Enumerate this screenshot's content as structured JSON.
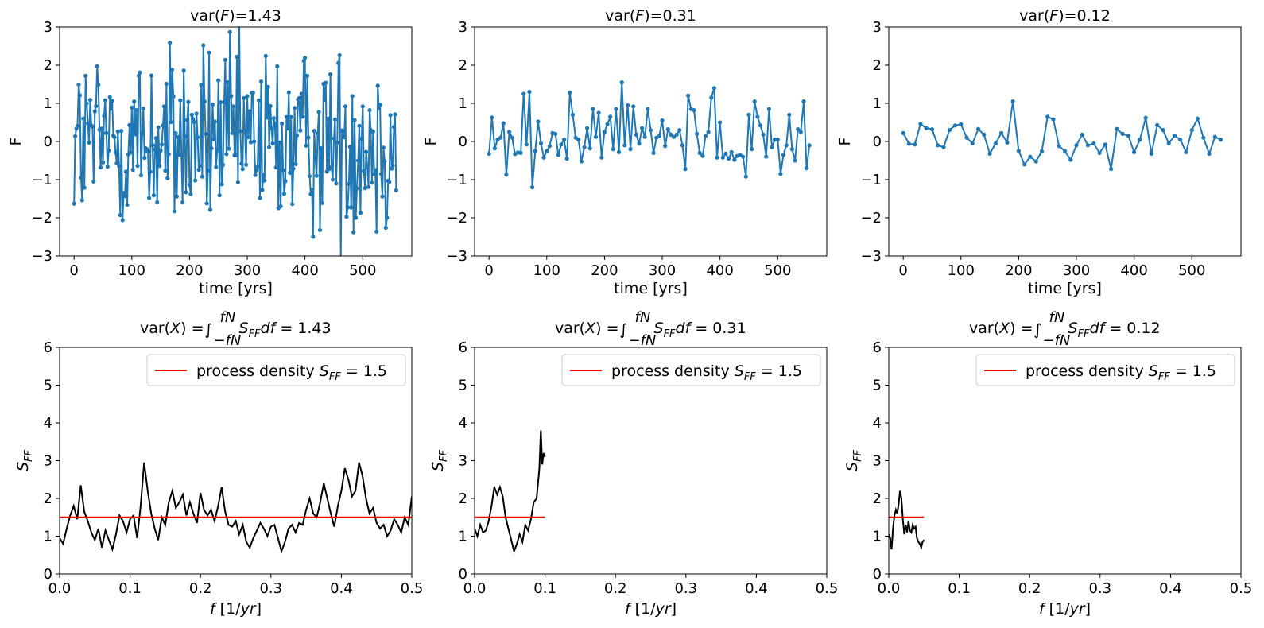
{
  "colors": {
    "series": "#1f77b4",
    "spectrum": "#000000",
    "reference": "#ff0000"
  },
  "top_titles": [
    "var(F)=1.43",
    "var(F)=0.31",
    "var(F)=0.12"
  ],
  "bottom_title_values": [
    "1.43",
    "0.31",
    "0.12"
  ],
  "legend_label": "process density S_FF = 1.5",
  "chart_data": [
    {
      "type": "line",
      "panel": "top-1",
      "title": "var(F)=1.43",
      "xlabel": "time [yrs]",
      "ylabel": "F",
      "xlim": [
        -25,
        585
      ],
      "ylim": [
        -3,
        3
      ],
      "xticks": [
        0,
        100,
        200,
        300,
        400,
        500
      ],
      "yticks": [
        -3,
        -2,
        -1,
        0,
        1,
        2,
        3
      ],
      "sample_interval": 2,
      "n_points": 280,
      "noise_scale": 1.2
    },
    {
      "type": "line",
      "panel": "top-2",
      "title": "var(F)=0.31",
      "xlabel": "time [yrs]",
      "ylabel": "F",
      "xlim": [
        -25,
        585
      ],
      "ylim": [
        -3,
        3
      ],
      "xticks": [
        0,
        100,
        200,
        300,
        400,
        500
      ],
      "yticks": [
        -3,
        -2,
        -1,
        0,
        1,
        2,
        3
      ],
      "sample_interval": 5,
      "n_points": 112,
      "values": [
        -0.32,
        0.63,
        -0.18,
        0.05,
        0.1,
        0.48,
        -0.87,
        0.25,
        0.1,
        -0.33,
        -0.29,
        -0.3,
        1.25,
        -0.08,
        1.3,
        -1.2,
        -0.25,
        0.52,
        -0.05,
        -0.42,
        -0.25,
        -0.12,
        0.22,
        0.2,
        -0.35,
        -0.08,
        0.05,
        -0.45,
        1.28,
        0.7,
        0.1,
        0.05,
        -0.52,
        -0.15,
        0.35,
        -0.18,
        0.85,
        0.12,
        0.75,
        -0.42,
        0.25,
        0.45,
        0.65,
        -0.2,
        0.85,
        -0.28,
        1.55,
        -0.1,
        0.95,
        -0.2,
        0.92,
        0.18,
        -0.05,
        0.35,
        0.12,
        0.85,
        0.3,
        -0.3,
        0.1,
        0.15,
        0.55,
        -0.12,
        0.32,
        0.18,
        0.12,
        0.18,
        0.3,
        -0.1,
        -0.72,
        1.2,
        0.85,
        0.82,
        0.2,
        -0.3,
        -0.38,
        0.15,
        0.25,
        1.15,
        1.4,
        -0.42,
        0.5,
        -0.42,
        -0.32,
        -0.45,
        -0.28,
        -0.48,
        -0.38,
        -0.35,
        -0.4,
        -0.92,
        0.7,
        -0.2,
        1.05,
        0.65,
        0.42,
        0.18,
        -0.4,
        0.85,
        -0.15,
        0.05,
        0.05,
        -0.85,
        -0.35,
        -0.1,
        0.7,
        -0.2,
        -0.5,
        0.32,
        0.25,
        1.05,
        -0.7,
        -0.1
      ]
    },
    {
      "type": "line",
      "panel": "top-3",
      "title": "var(F)=0.12",
      "xlabel": "time [yrs]",
      "ylabel": "F",
      "xlim": [
        -25,
        585
      ],
      "ylim": [
        -3,
        3
      ],
      "xticks": [
        0,
        100,
        200,
        300,
        400,
        500
      ],
      "yticks": [
        -3,
        -2,
        -1,
        0,
        1,
        2,
        3
      ],
      "sample_interval": 10,
      "n_points": 56,
      "values": [
        0.22,
        -0.06,
        -0.08,
        0.46,
        0.35,
        0.32,
        -0.1,
        -0.15,
        0.3,
        0.42,
        0.45,
        0.1,
        -0.05,
        0.33,
        0.18,
        -0.32,
        -0.05,
        0.22,
        -0.03,
        1.05,
        -0.25,
        -0.6,
        -0.4,
        -0.52,
        -0.26,
        0.65,
        0.58,
        -0.12,
        -0.25,
        -0.48,
        -0.1,
        0.18,
        -0.1,
        -0.05,
        -0.3,
        -0.08,
        -0.72,
        0.33,
        0.2,
        0.15,
        -0.28,
        0.05,
        0.62,
        -0.32,
        0.43,
        0.3,
        -0.05,
        0.15,
        0.05,
        -0.28,
        0.3,
        0.6,
        0.1,
        -0.32,
        0.12,
        0.05
      ]
    },
    {
      "type": "line",
      "panel": "bottom-1",
      "xlabel": "f [1/yr]",
      "ylabel": "S_FF",
      "xlim": [
        0,
        0.5
      ],
      "ylim": [
        0,
        6
      ],
      "xticks": [
        0.0,
        0.1,
        0.2,
        0.3,
        0.4,
        0.5
      ],
      "yticks": [
        0,
        1,
        2,
        3,
        4,
        5,
        6
      ],
      "reference_level": 1.5,
      "reference_x": [
        0,
        0.5
      ],
      "x": [
        0,
        0.005,
        0.01,
        0.015,
        0.02,
        0.025,
        0.03,
        0.035,
        0.04,
        0.045,
        0.05,
        0.055,
        0.06,
        0.065,
        0.07,
        0.075,
        0.08,
        0.085,
        0.09,
        0.095,
        0.1,
        0.105,
        0.11,
        0.115,
        0.12,
        0.125,
        0.13,
        0.135,
        0.14,
        0.145,
        0.15,
        0.155,
        0.16,
        0.165,
        0.17,
        0.175,
        0.18,
        0.185,
        0.19,
        0.195,
        0.2,
        0.205,
        0.21,
        0.215,
        0.22,
        0.225,
        0.23,
        0.235,
        0.24,
        0.245,
        0.25,
        0.255,
        0.26,
        0.265,
        0.27,
        0.275,
        0.28,
        0.285,
        0.29,
        0.295,
        0.3,
        0.305,
        0.31,
        0.315,
        0.32,
        0.325,
        0.33,
        0.335,
        0.34,
        0.345,
        0.35,
        0.355,
        0.36,
        0.365,
        0.37,
        0.375,
        0.38,
        0.385,
        0.39,
        0.395,
        0.4,
        0.405,
        0.41,
        0.415,
        0.42,
        0.425,
        0.43,
        0.435,
        0.44,
        0.445,
        0.45,
        0.455,
        0.46,
        0.465,
        0.47,
        0.475,
        0.48,
        0.485,
        0.49,
        0.495,
        0.5
      ],
      "y": [
        0.95,
        0.8,
        1.2,
        1.55,
        1.8,
        1.45,
        2.35,
        1.65,
        1.4,
        1.1,
        0.9,
        1.2,
        0.7,
        1.15,
        0.9,
        0.65,
        1.05,
        1.55,
        1.4,
        1.1,
        1.45,
        1.55,
        0.95,
        1.8,
        2.95,
        2.2,
        1.6,
        1.2,
        0.9,
        1.5,
        1.3,
        1.9,
        2.2,
        1.75,
        1.9,
        2.1,
        1.55,
        1.9,
        1.6,
        1.35,
        2.15,
        1.7,
        1.55,
        1.7,
        1.4,
        1.8,
        2.3,
        1.65,
        1.3,
        1.25,
        1.4,
        1.05,
        1.3,
        0.85,
        0.7,
        0.95,
        1.15,
        1.35,
        1.2,
        1.0,
        1.25,
        1.3,
        0.95,
        0.6,
        0.85,
        1.2,
        1.3,
        1.1,
        1.35,
        1.3,
        1.7,
        2.0,
        1.6,
        1.5,
        1.9,
        2.4,
        2.0,
        1.6,
        1.25,
        1.8,
        2.2,
        2.8,
        2.5,
        2.05,
        2.2,
        2.95,
        2.6,
        2.0,
        1.6,
        1.75,
        1.35,
        1.2,
        1.3,
        1.0,
        1.15,
        1.45,
        1.3,
        1.1,
        1.5,
        1.3,
        2.05
      ]
    },
    {
      "type": "line",
      "panel": "bottom-2",
      "xlabel": "f [1/yr]",
      "ylabel": "S_FF",
      "xlim": [
        0,
        0.5
      ],
      "ylim": [
        0,
        6
      ],
      "xticks": [
        0.0,
        0.1,
        0.2,
        0.3,
        0.4,
        0.5
      ],
      "yticks": [
        0,
        1,
        2,
        3,
        4,
        5,
        6
      ],
      "reference_level": 1.5,
      "reference_x": [
        0,
        0.1
      ],
      "x": [
        0,
        0.004,
        0.008,
        0.012,
        0.016,
        0.02,
        0.024,
        0.028,
        0.032,
        0.036,
        0.04,
        0.044,
        0.048,
        0.052,
        0.056,
        0.06,
        0.064,
        0.068,
        0.072,
        0.076,
        0.08,
        0.084,
        0.088,
        0.092,
        0.094,
        0.096,
        0.098,
        0.1
      ],
      "y": [
        1.2,
        1.0,
        1.3,
        1.1,
        1.15,
        1.4,
        1.8,
        2.3,
        2.1,
        2.3,
        2.05,
        1.5,
        1.2,
        0.9,
        0.6,
        0.8,
        1.05,
        0.85,
        1.3,
        1.15,
        1.45,
        1.9,
        2.0,
        2.8,
        3.8,
        2.9,
        3.2,
        3.1
      ]
    },
    {
      "type": "line",
      "panel": "bottom-3",
      "xlabel": "f [1/yr]",
      "ylabel": "S_FF",
      "xlim": [
        0,
        0.5
      ],
      "ylim": [
        0,
        6
      ],
      "xticks": [
        0.0,
        0.1,
        0.2,
        0.3,
        0.4,
        0.5
      ],
      "yticks": [
        0,
        1,
        2,
        3,
        4,
        5,
        6
      ],
      "reference_level": 1.5,
      "reference_x": [
        0,
        0.05
      ],
      "x": [
        0,
        0.002,
        0.004,
        0.006,
        0.008,
        0.01,
        0.012,
        0.014,
        0.016,
        0.018,
        0.02,
        0.022,
        0.024,
        0.026,
        0.028,
        0.03,
        0.032,
        0.034,
        0.036,
        0.038,
        0.04,
        0.042,
        0.044,
        0.046,
        0.048,
        0.05
      ],
      "y": [
        1.05,
        0.95,
        0.65,
        1.2,
        1.55,
        1.7,
        1.6,
        1.85,
        2.2,
        2.0,
        1.45,
        1.05,
        1.3,
        1.1,
        1.4,
        1.15,
        1.1,
        1.3,
        1.2,
        1.25,
        0.95,
        0.85,
        0.8,
        0.7,
        0.85,
        0.9
      ]
    }
  ]
}
